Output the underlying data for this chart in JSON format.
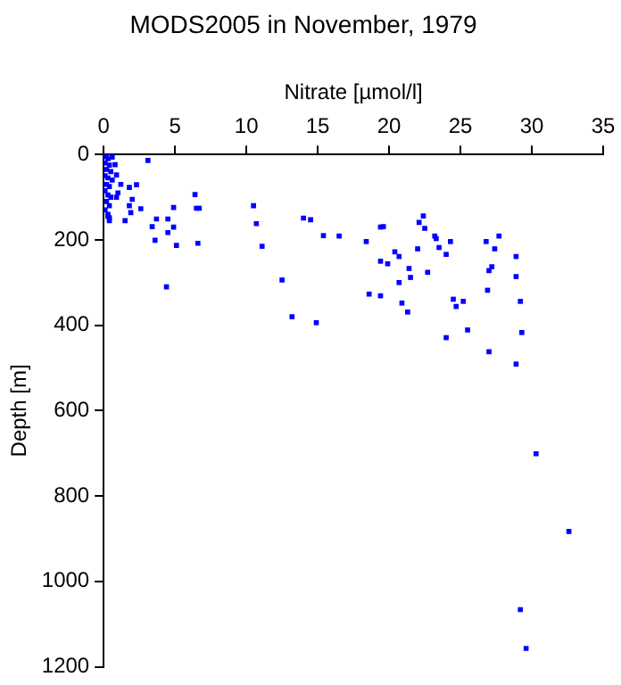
{
  "chart_data": {
    "type": "scatter",
    "title": "MODS2005 in November, 1979",
    "xlabel": "Nitrate [µmol/l]",
    "ylabel": "Depth [m]",
    "xlim": [
      0,
      35
    ],
    "xticks": [
      0,
      5,
      10,
      15,
      20,
      25,
      30,
      35
    ],
    "ylim": [
      1200,
      0
    ],
    "yticks": [
      0,
      200,
      400,
      600,
      800,
      1000,
      1200
    ],
    "grid": false,
    "marker": "square",
    "legend": false,
    "series": [
      {
        "color": "#0000ff",
        "x": [
          0.1,
          0.2,
          0.3,
          0.1,
          0.4,
          0.2,
          0.5,
          0.1,
          0.3,
          0.6,
          0.2,
          0.4,
          0.1,
          0.3,
          0.5,
          0.2,
          0.4,
          0.1,
          0.3,
          1.0,
          0.9,
          1.2,
          0.4,
          0.3,
          3.1,
          6.4,
          10.5,
          4.9,
          6.7,
          6.5,
          1.8,
          2.3,
          2.0,
          1.8,
          1.9,
          2.6,
          1.5,
          0.4,
          0.9,
          0.8,
          0.6,
          3.7,
          4.5,
          3.4,
          4.9,
          4.5,
          3.6,
          5.1,
          6.6,
          10.7,
          11.1,
          4.4,
          14.0,
          14.5,
          12.5,
          13.2,
          14.9,
          15.4,
          16.5,
          18.4,
          19.4,
          19.6,
          22.1,
          22.4,
          22.5,
          23.2,
          23.3,
          20.4,
          20.7,
          22.0,
          23.5,
          24.0,
          24.3,
          19.4,
          19.9,
          21.4,
          21.5,
          22.7,
          20.7,
          18.6,
          19.4,
          20.9,
          21.3,
          24.5,
          24.7,
          25.2,
          25.5,
          24.0,
          26.8,
          27.7,
          27.4,
          27.2,
          27.0,
          26.9,
          28.9,
          28.9,
          29.2,
          29.3,
          27.0,
          28.9,
          30.3,
          32.6,
          29.2,
          29.6
        ],
        "values": [
          0,
          5,
          10,
          20,
          25,
          35,
          40,
          50,
          55,
          60,
          70,
          75,
          85,
          95,
          100,
          110,
          120,
          130,
          140,
          90,
          100,
          70,
          155,
          145,
          14,
          94,
          120,
          124,
          126,
          126,
          77,
          71,
          105,
          120,
          136,
          127,
          155,
          148,
          48,
          24,
          6,
          151,
          151,
          169,
          170,
          183,
          201,
          213,
          208,
          162,
          215,
          310,
          149,
          153,
          294,
          380,
          394,
          190,
          191,
          204,
          170,
          169,
          159,
          144,
          173,
          191,
          197,
          228,
          239,
          221,
          218,
          234,
          204,
          250,
          256,
          267,
          288,
          276,
          300,
          327,
          331,
          348,
          369,
          339,
          356,
          344,
          411,
          429,
          204,
          191,
          221,
          263,
          272,
          318,
          239,
          286,
          344,
          417,
          462,
          491,
          701,
          883,
          1066,
          1157
        ]
      }
    ]
  }
}
